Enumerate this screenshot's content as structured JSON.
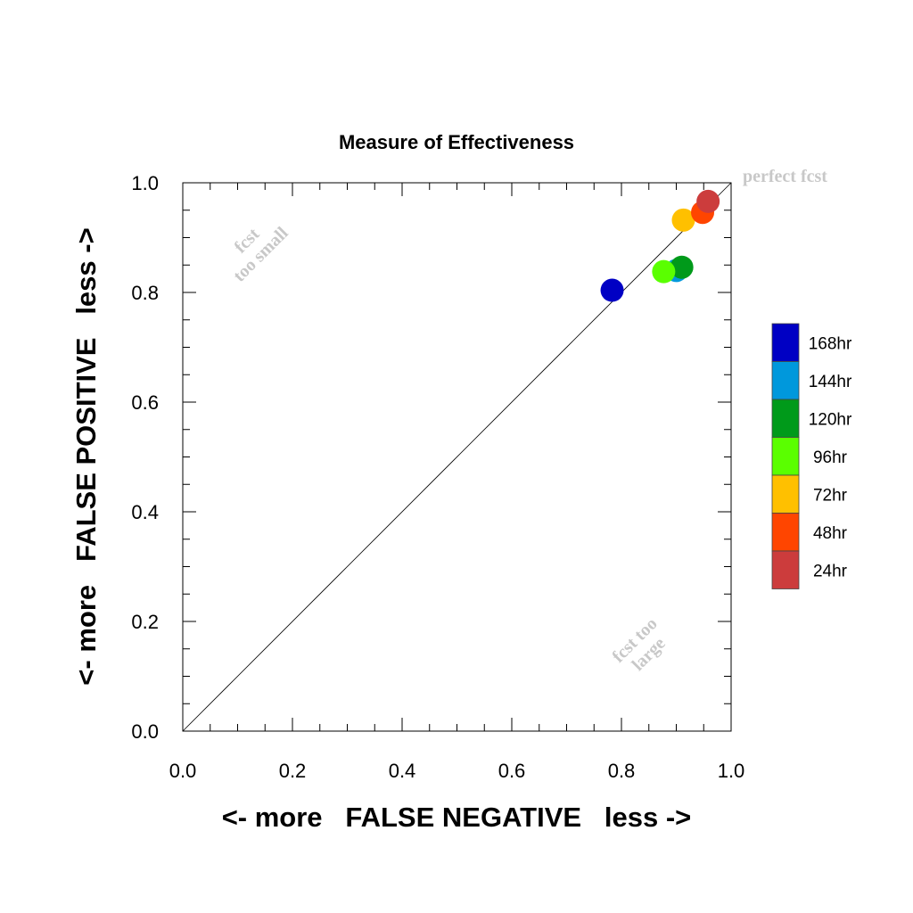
{
  "chart_data": {
    "type": "scatter",
    "title": "Measure of Effectiveness",
    "xlabel": "<- more   FALSE NEGATIVE   less ->",
    "ylabel": "<- more   FALSE POSITIVE   less ->",
    "xlim": [
      0.0,
      1.0
    ],
    "ylim": [
      0.0,
      1.0
    ],
    "x_ticks": [
      "0.0",
      "0.2",
      "0.4",
      "0.6",
      "0.8",
      "1.0"
    ],
    "y_ticks": [
      "0.0",
      "0.2",
      "0.4",
      "0.6",
      "0.8",
      "1.0"
    ],
    "diagonal_line": true,
    "grid": false,
    "legend_position": "right",
    "annotations": {
      "perfect": "perfect fcst",
      "small_line1": "fcst",
      "small_line2": "too small",
      "large_line1": "fcst too",
      "large_line2": "large"
    },
    "series": [
      {
        "name": "24hr",
        "color": "#cc3c3c",
        "x": 0.958,
        "y": 0.966
      },
      {
        "name": "48hr",
        "color": "#ff4500",
        "x": 0.948,
        "y": 0.946
      },
      {
        "name": "72hr",
        "color": "#ffc000",
        "x": 0.913,
        "y": 0.932
      },
      {
        "name": "96hr",
        "color": "#5aff00",
        "x": 0.877,
        "y": 0.838
      },
      {
        "name": "120hr",
        "color": "#009a1a",
        "x": 0.91,
        "y": 0.846
      },
      {
        "name": "144hr",
        "color": "#0098dc",
        "x": 0.9,
        "y": 0.84
      },
      {
        "name": "168hr",
        "color": "#0000c4",
        "x": 0.783,
        "y": 0.804
      }
    ],
    "legend_order": [
      "168hr",
      "144hr",
      "120hr",
      "96hr",
      "72hr",
      "48hr",
      "24hr"
    ]
  }
}
